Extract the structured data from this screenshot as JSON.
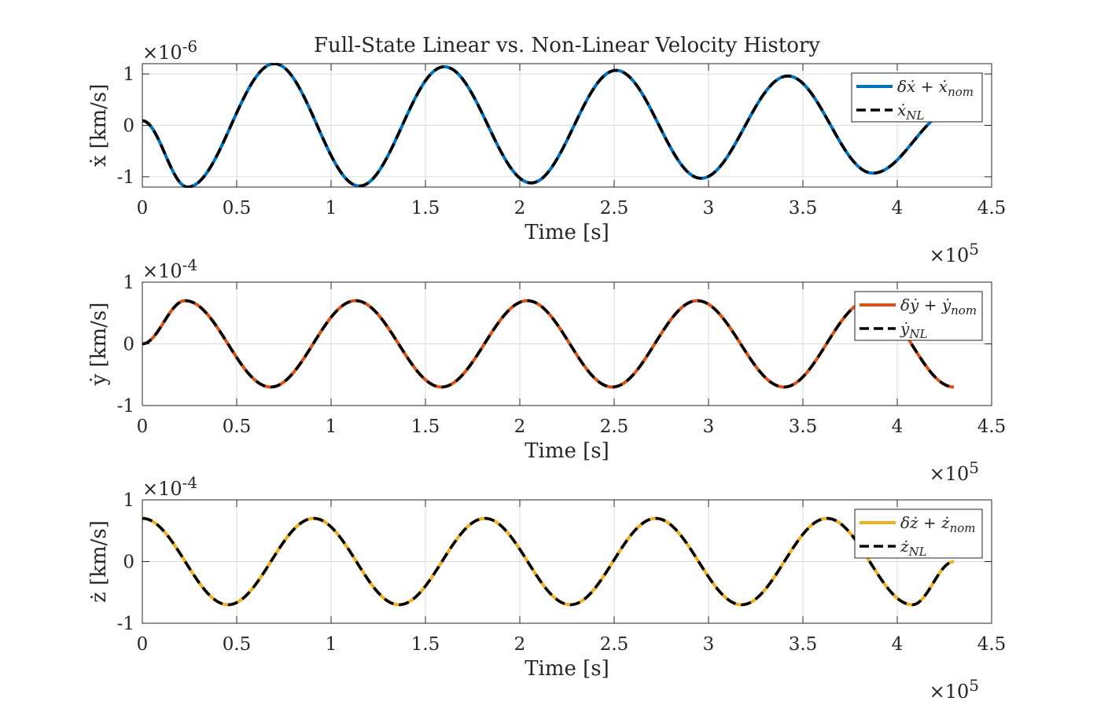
{
  "figure": {
    "title": "Full-State Linear vs. Non-Linear Velocity History",
    "background": "#ffffff"
  },
  "chart_data": [
    {
      "type": "line",
      "id": "xdot",
      "title": "Full-State Linear vs. Non-Linear Velocity History",
      "xlabel": "Time [s]",
      "ylabel": "ẋ [km/s]",
      "x_exponent_label": "×10",
      "x_exponent": "5",
      "y_exponent_label": "×10",
      "y_exponent": "-6",
      "xlim": [
        0,
        450000
      ],
      "ylim": [
        -1.2,
        1.2
      ],
      "xticks": [
        0,
        50000,
        100000,
        150000,
        200000,
        250000,
        300000,
        350000,
        400000,
        450000
      ],
      "xtick_labels": [
        "0",
        "0.5",
        "1",
        "1.5",
        "2",
        "2.5",
        "3",
        "3.5",
        "4",
        "4.5"
      ],
      "yticks": [
        -1,
        0,
        1
      ],
      "ytick_labels": [
        "-1",
        "0",
        "1"
      ],
      "grid": true,
      "legend_position": "top-right",
      "x": [
        0,
        24000,
        70000,
        115000,
        160000,
        206000,
        251000,
        296000,
        342000,
        387000,
        430000
      ],
      "series": [
        {
          "name": "δẋ + ẋnom",
          "legend_base": "δẋ + ẋ",
          "legend_sub": "nom",
          "color": "#0072BD",
          "style": "solid",
          "values": [
            0.09,
            -1.2,
            1.2,
            -1.18,
            1.14,
            -1.12,
            1.07,
            -1.03,
            0.96,
            -0.93,
            0.3
          ]
        },
        {
          "name": "ẋNL",
          "legend_base": "ẋ",
          "legend_sub": "NL",
          "color": "#000000",
          "style": "dashed",
          "values": [
            0.09,
            -1.2,
            1.2,
            -1.18,
            1.14,
            -1.12,
            1.07,
            -1.03,
            0.96,
            -0.93,
            0.3
          ]
        }
      ]
    },
    {
      "type": "line",
      "id": "ydot",
      "xlabel": "Time [s]",
      "ylabel": "ẏ [km/s]",
      "x_exponent_label": "×10",
      "x_exponent": "5",
      "y_exponent_label": "×10",
      "y_exponent": "-4",
      "xlim": [
        0,
        450000
      ],
      "ylim": [
        -1,
        1
      ],
      "xticks": [
        0,
        50000,
        100000,
        150000,
        200000,
        250000,
        300000,
        350000,
        400000,
        450000
      ],
      "xtick_labels": [
        "0",
        "0.5",
        "1",
        "1.5",
        "2",
        "2.5",
        "3",
        "3.5",
        "4",
        "4.5"
      ],
      "yticks": [
        -1,
        0,
        1
      ],
      "ytick_labels": [
        "-1",
        "0",
        "1"
      ],
      "grid": true,
      "legend_position": "top-right",
      "x": [
        0,
        22700,
        68000,
        113000,
        158500,
        204000,
        249000,
        294000,
        340000,
        385000,
        430000
      ],
      "series": [
        {
          "name": "δẏ + ẏnom",
          "legend_base": "δẏ + ẏ",
          "legend_sub": "nom",
          "color": "#D95319",
          "style": "solid",
          "values": [
            0,
            0.7,
            -0.7,
            0.7,
            -0.7,
            0.7,
            -0.7,
            0.7,
            -0.7,
            0.7,
            -0.7
          ]
        },
        {
          "name": "ẏNL",
          "legend_base": "ẏ",
          "legend_sub": "NL",
          "color": "#000000",
          "style": "dashed",
          "values": [
            0,
            0.7,
            -0.7,
            0.7,
            -0.7,
            0.7,
            -0.7,
            0.7,
            -0.7,
            0.7,
            -0.7
          ]
        }
      ]
    },
    {
      "type": "line",
      "id": "zdot",
      "xlabel": "Time [s]",
      "ylabel": "ż [km/s]",
      "x_exponent_label": "×10",
      "x_exponent": "5",
      "y_exponent_label": "×10",
      "y_exponent": "-4",
      "xlim": [
        0,
        450000
      ],
      "ylim": [
        -1,
        1
      ],
      "xticks": [
        0,
        50000,
        100000,
        150000,
        200000,
        250000,
        300000,
        350000,
        400000,
        450000
      ],
      "xtick_labels": [
        "0",
        "0.5",
        "1",
        "1.5",
        "2",
        "2.5",
        "3",
        "3.5",
        "4",
        "4.5"
      ],
      "yticks": [
        -1,
        0,
        1
      ],
      "ytick_labels": [
        "-1",
        "0",
        "1"
      ],
      "grid": true,
      "legend_position": "top-right",
      "x": [
        0,
        45400,
        90800,
        136000,
        181500,
        226800,
        272000,
        317500,
        362800,
        408000,
        430000
      ],
      "series": [
        {
          "name": "δż + żnom",
          "legend_base": "δż + ż",
          "legend_sub": "nom",
          "color": "#EDB120",
          "style": "solid",
          "values": [
            0.7,
            -0.7,
            0.7,
            -0.7,
            0.7,
            -0.7,
            0.7,
            -0.7,
            0.7,
            -0.7,
            0.0
          ]
        },
        {
          "name": "żNL",
          "legend_base": "ż",
          "legend_sub": "NL",
          "color": "#000000",
          "style": "dashed",
          "values": [
            0.7,
            -0.7,
            0.7,
            -0.7,
            0.7,
            -0.7,
            0.7,
            -0.7,
            0.7,
            -0.7,
            0.0
          ]
        }
      ]
    }
  ]
}
